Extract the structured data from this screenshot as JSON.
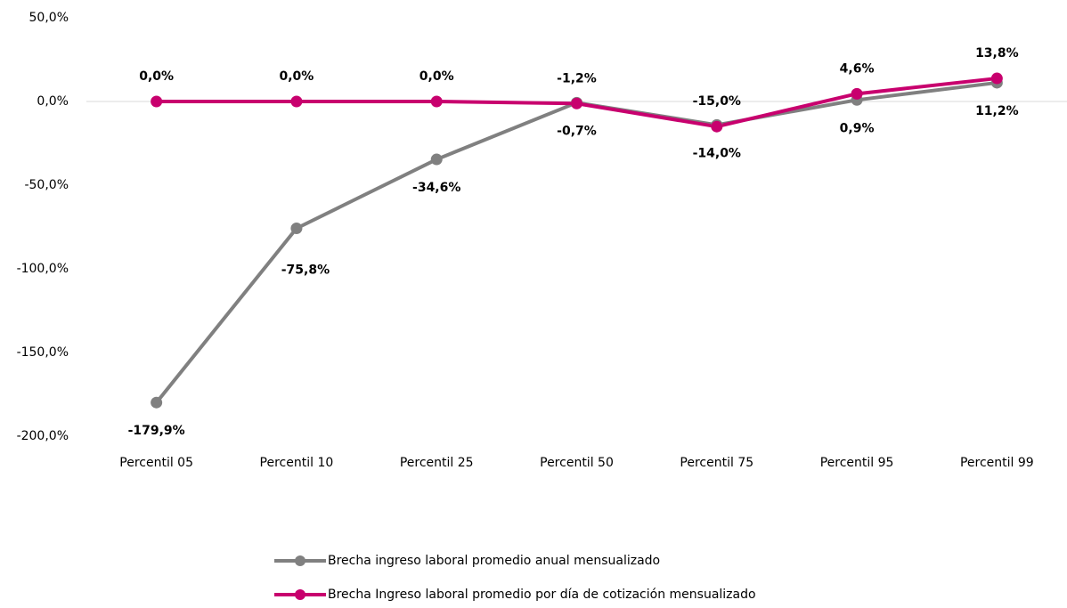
{
  "chart_data": {
    "type": "line",
    "categories": [
      "Percentil 05",
      "Percentil 10",
      "Percentil 25",
      "Percentil 50",
      "Percentil 75",
      "Percentil 95",
      "Percentil 99"
    ],
    "series": [
      {
        "name": "Brecha ingreso laboral promedio anual mensualizado",
        "color": "#808080",
        "values": [
          -179.9,
          -75.8,
          -34.6,
          -0.7,
          -14.0,
          0.9,
          11.2
        ],
        "value_labels": [
          "-179,9%",
          "-75,8%",
          "-34,6%",
          "-0,7%",
          "-14,0%",
          "0,9%",
          "11,2%"
        ]
      },
      {
        "name": "Brecha Ingreso laboral promedio por día de cotización mensualizado",
        "color": "#c8006e",
        "values": [
          0.0,
          0.0,
          0.0,
          -1.2,
          -15.0,
          4.6,
          13.8
        ],
        "value_labels": [
          "0,0%",
          "0,0%",
          "0,0%",
          "-1,2%",
          "-15,0%",
          "4,6%",
          "13,8%"
        ]
      }
    ],
    "ylim": [
      -200,
      50
    ],
    "yticks": [
      {
        "value": -200,
        "label": "-200,0%"
      },
      {
        "value": -150,
        "label": "-150,0%"
      },
      {
        "value": -100,
        "label": "-100,0%"
      },
      {
        "value": -50,
        "label": "-50,0%"
      },
      {
        "value": 0,
        "label": "0,0%"
      },
      {
        "value": 50,
        "label": "50,0%"
      }
    ],
    "grid": false
  }
}
